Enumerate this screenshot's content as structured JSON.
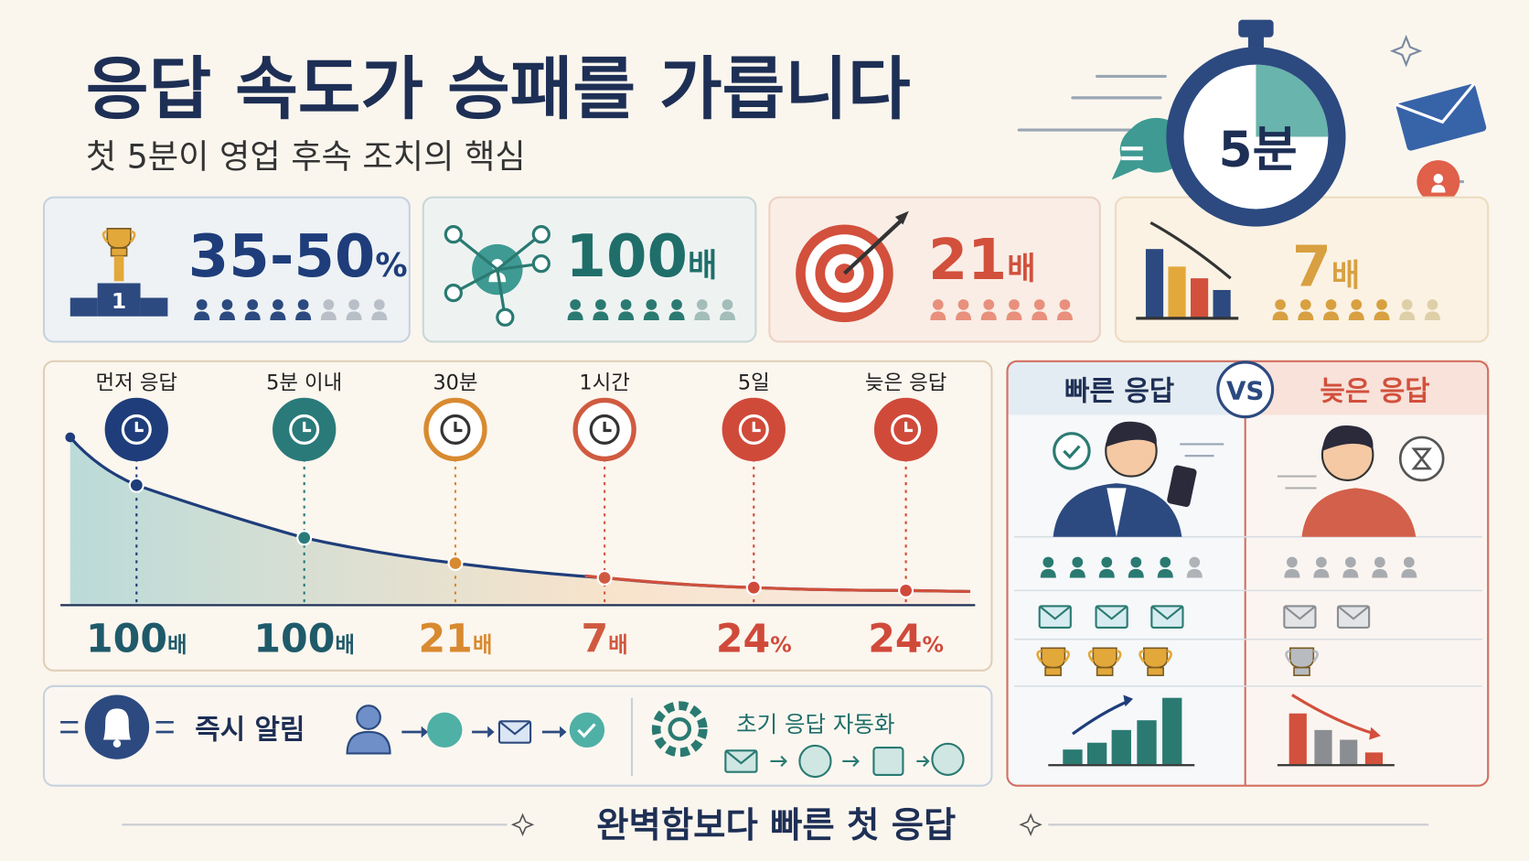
{
  "header": {
    "title": "응답 속도가 승패를 가릅니다",
    "subtitle": "첫 5분이 영업 후속 조치의 핵심",
    "timer_label": "5분"
  },
  "stats": [
    {
      "value": "35-50",
      "unit": "%"
    },
    {
      "value": "100",
      "unit": "배"
    },
    {
      "value": "21",
      "unit": "배"
    },
    {
      "value": "7",
      "unit": "배"
    }
  ],
  "trophy_rank": "1",
  "timeline": {
    "steps": [
      {
        "label": "먼저 응답",
        "value": "100",
        "unit": "배"
      },
      {
        "label": "5분 이내",
        "value": "100",
        "unit": "배"
      },
      {
        "label": "30분",
        "value": "21",
        "unit": "배"
      },
      {
        "label": "1시간",
        "value": "7",
        "unit": "배"
      },
      {
        "label": "5일",
        "value": "24",
        "unit": "%"
      },
      {
        "label": "늦은 응답",
        "value": "24",
        "unit": "%"
      }
    ]
  },
  "actions": {
    "instant": "즉시 알림",
    "automation": "초기 응답 자동화"
  },
  "comparison": {
    "fast": "빠른 응답",
    "vs": "VS",
    "slow": "늦은 응답"
  },
  "footer": "완벽함보다 빠른 첫 응답"
}
